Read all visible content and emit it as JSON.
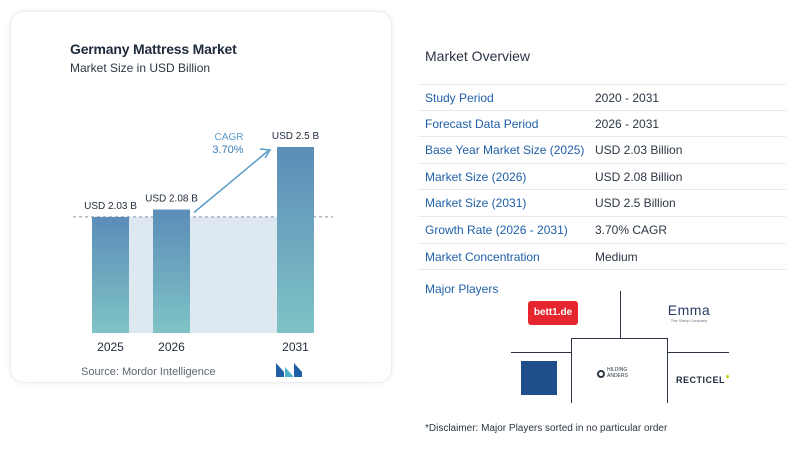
{
  "chart_card": {
    "title": "Germany Mattress Market",
    "subtitle": "Market Size in USD Billion",
    "source": "Source:  Mordor Intelligence"
  },
  "chart_data": {
    "type": "bar",
    "title": "Germany Mattress Market",
    "subtitle": "Market Size in USD Billion",
    "categories": [
      "2025",
      "2026",
      "2031"
    ],
    "values": [
      2.03,
      2.08,
      2.5
    ],
    "data_labels": [
      "USD 2.03 B",
      "USD 2.08 B",
      "USD 2.5 B"
    ],
    "ylim": [
      0,
      2.5
    ],
    "cagr_label": "CAGR",
    "cagr_value": "3.70%",
    "colors": {
      "bar": "#5b8db8",
      "bar_bottom": "#7fc3c6",
      "band": "#dde8f1",
      "arrow": "#5b9bc9"
    }
  },
  "overview": {
    "title": "Market Overview",
    "rows": [
      {
        "label": "Study Period",
        "value": "2020 - 2031"
      },
      {
        "label": "Forecast Data Period",
        "value": "2026 - 2031"
      },
      {
        "label": "Base Year Market Size (2025)",
        "value": "USD 2.03 Billion"
      },
      {
        "label": "Market Size (2026)",
        "value": "USD 2.08 Billion"
      },
      {
        "label": "Market Size (2031)",
        "value": "USD 2.5 Billion"
      },
      {
        "label": "Growth Rate (2026 - 2031)",
        "value": "3.70% CAGR"
      },
      {
        "label": "Market Concentration",
        "value": "Medium"
      }
    ]
  },
  "players": {
    "title": "Major Players",
    "logos": {
      "bett1": "bett1.de",
      "emma": "Emma",
      "emma_tagline": "The Sleep Company",
      "hilding": "HILDING ANDERS",
      "recticel": "RECTICEL"
    }
  },
  "disclaimer": "*Disclaimer: Major Players sorted in no particular order",
  "colors": {
    "accent": "#1f5fa8"
  }
}
